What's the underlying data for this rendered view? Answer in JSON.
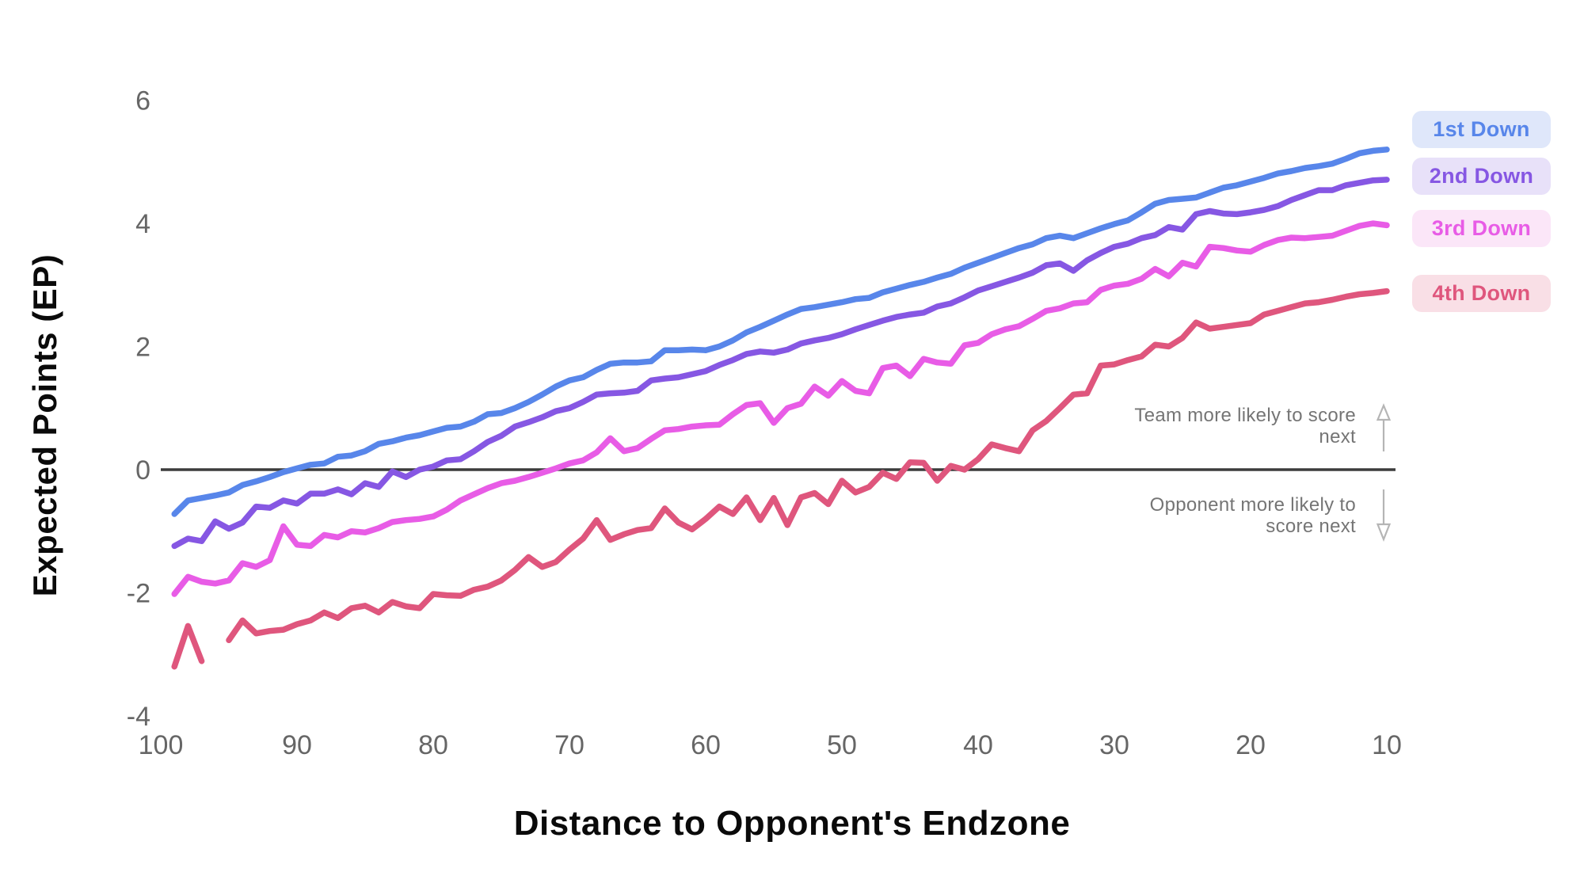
{
  "chart_data": {
    "type": "line",
    "title": "",
    "xlabel": "Distance to Opponent's Endzone",
    "ylabel": "Expected Points (EP)",
    "x_axis": {
      "ticks": [
        100,
        90,
        80,
        70,
        60,
        50,
        40,
        30,
        20,
        10
      ],
      "reversed": true,
      "range": [
        100,
        10
      ]
    },
    "y_axis": {
      "ticks": [
        6,
        4,
        2,
        0,
        -2,
        -4
      ],
      "range": [
        -4,
        6
      ],
      "grid": false
    },
    "zero_line": {
      "value": 0,
      "color": "#3c3c3c"
    },
    "legend_position": "right",
    "x": [
      99,
      98,
      97,
      96,
      95,
      94,
      93,
      92,
      91,
      90,
      89,
      88,
      87,
      86,
      85,
      84,
      83,
      82,
      81,
      80,
      79,
      78,
      77,
      76,
      75,
      74,
      73,
      72,
      71,
      70,
      69,
      68,
      67,
      66,
      65,
      64,
      63,
      62,
      61,
      60,
      59,
      58,
      57,
      56,
      55,
      54,
      53,
      52,
      51,
      50,
      49,
      48,
      47,
      46,
      45,
      44,
      43,
      42,
      41,
      40,
      39,
      38,
      37,
      36,
      35,
      34,
      33,
      32,
      31,
      30,
      29,
      28,
      27,
      26,
      25,
      24,
      23,
      22,
      21,
      20,
      19,
      18,
      17,
      16,
      15,
      14,
      13,
      12,
      11,
      10
    ],
    "series": [
      {
        "name": "1st Down",
        "color": "#5886ea",
        "badge_bg": "#dfe7fa",
        "values": [
          -0.72,
          -0.5,
          -0.46,
          -0.42,
          -0.37,
          -0.25,
          -0.19,
          -0.12,
          -0.04,
          0.02,
          0.08,
          0.1,
          0.21,
          0.23,
          0.3,
          0.42,
          0.46,
          0.52,
          0.56,
          0.62,
          0.68,
          0.7,
          0.78,
          0.9,
          0.92,
          1.0,
          1.1,
          1.22,
          1.35,
          1.45,
          1.5,
          1.62,
          1.72,
          1.74,
          1.74,
          1.76,
          1.94,
          1.94,
          1.95,
          1.94,
          2.0,
          2.1,
          2.23,
          2.32,
          2.42,
          2.52,
          2.61,
          2.64,
          2.68,
          2.72,
          2.77,
          2.79,
          2.88,
          2.94,
          3.0,
          3.05,
          3.12,
          3.18,
          3.28,
          3.36,
          3.44,
          3.52,
          3.6,
          3.66,
          3.76,
          3.8,
          3.76,
          3.84,
          3.92,
          3.99,
          4.05,
          4.18,
          4.32,
          4.38,
          4.4,
          4.42,
          4.5,
          4.58,
          4.62,
          4.68,
          4.74,
          4.81,
          4.85,
          4.9,
          4.93,
          4.97,
          5.05,
          5.14,
          5.18,
          5.2
        ]
      },
      {
        "name": "2nd Down",
        "color": "#8657e3",
        "badge_bg": "#e8e1f9",
        "values": [
          -1.24,
          -1.12,
          -1.16,
          -0.84,
          -0.96,
          -0.86,
          -0.6,
          -0.62,
          -0.5,
          -0.55,
          -0.39,
          -0.39,
          -0.32,
          -0.4,
          -0.22,
          -0.28,
          -0.03,
          -0.12,
          0.0,
          0.05,
          0.15,
          0.17,
          0.3,
          0.45,
          0.55,
          0.7,
          0.77,
          0.85,
          0.95,
          1.0,
          1.1,
          1.22,
          1.24,
          1.25,
          1.28,
          1.45,
          1.48,
          1.5,
          1.55,
          1.6,
          1.7,
          1.78,
          1.88,
          1.92,
          1.9,
          1.95,
          2.05,
          2.1,
          2.14,
          2.2,
          2.28,
          2.35,
          2.42,
          2.48,
          2.52,
          2.55,
          2.65,
          2.7,
          2.8,
          2.91,
          2.98,
          3.05,
          3.12,
          3.2,
          3.32,
          3.35,
          3.23,
          3.4,
          3.52,
          3.62,
          3.67,
          3.76,
          3.81,
          3.94,
          3.9,
          4.15,
          4.2,
          4.16,
          4.15,
          4.18,
          4.22,
          4.28,
          4.38,
          4.46,
          4.54,
          4.54,
          4.62,
          4.66,
          4.7,
          4.71
        ]
      },
      {
        "name": "3rd Down",
        "color": "#e85ce6",
        "badge_bg": "#fbe6f8",
        "values": [
          -2.02,
          -1.74,
          -1.82,
          -1.85,
          -1.8,
          -1.52,
          -1.58,
          -1.47,
          -0.92,
          -1.22,
          -1.24,
          -1.06,
          -1.1,
          -1.0,
          -1.02,
          -0.95,
          -0.85,
          -0.82,
          -0.8,
          -0.76,
          -0.65,
          -0.5,
          -0.4,
          -0.3,
          -0.22,
          -0.18,
          -0.12,
          -0.05,
          0.02,
          0.1,
          0.15,
          0.28,
          0.51,
          0.3,
          0.35,
          0.5,
          0.64,
          0.66,
          0.7,
          0.72,
          0.73,
          0.9,
          1.05,
          1.08,
          0.76,
          1.0,
          1.07,
          1.35,
          1.2,
          1.44,
          1.28,
          1.24,
          1.65,
          1.69,
          1.52,
          1.8,
          1.74,
          1.72,
          2.02,
          2.06,
          2.2,
          2.28,
          2.33,
          2.45,
          2.58,
          2.62,
          2.7,
          2.72,
          2.92,
          2.99,
          3.02,
          3.1,
          3.26,
          3.14,
          3.36,
          3.3,
          3.62,
          3.6,
          3.56,
          3.54,
          3.65,
          3.73,
          3.77,
          3.76,
          3.78,
          3.8,
          3.88,
          3.96,
          4.0,
          3.97
        ]
      },
      {
        "name": "4th Down",
        "color": "#df567d",
        "badge_bg": "#f9dfe6",
        "values": [
          -3.2,
          -2.54,
          -3.11,
          null,
          -2.77,
          -2.45,
          -2.66,
          -2.62,
          -2.6,
          -2.51,
          -2.45,
          -2.32,
          -2.41,
          -2.25,
          -2.21,
          -2.32,
          -2.15,
          -2.22,
          -2.25,
          -2.02,
          -2.04,
          -2.05,
          -1.95,
          -1.9,
          -1.8,
          -1.63,
          -1.42,
          -1.58,
          -1.5,
          -1.3,
          -1.12,
          -0.82,
          -1.14,
          -1.05,
          -0.98,
          -0.95,
          -0.63,
          -0.86,
          -0.97,
          -0.8,
          -0.6,
          -0.72,
          -0.45,
          -0.82,
          -0.46,
          -0.9,
          -0.45,
          -0.38,
          -0.56,
          -0.18,
          -0.37,
          -0.28,
          -0.05,
          -0.15,
          0.12,
          0.11,
          -0.18,
          0.06,
          0.0,
          0.17,
          0.41,
          0.35,
          0.3,
          0.64,
          0.79,
          1.0,
          1.22,
          1.24,
          1.69,
          1.71,
          1.78,
          1.84,
          2.03,
          2.0,
          2.14,
          2.39,
          2.29,
          2.32,
          2.35,
          2.38,
          2.52,
          2.58,
          2.64,
          2.7,
          2.72,
          2.76,
          2.81,
          2.85,
          2.87,
          2.9
        ]
      }
    ],
    "annotations": [
      {
        "id": "above-zero",
        "line1": "Team more likely to score",
        "line2": "next",
        "arrow": "up"
      },
      {
        "id": "below-zero",
        "line1": "Opponent more likely to",
        "line2": "score next",
        "arrow": "down"
      }
    ]
  },
  "colors": {
    "background": "#ffffff",
    "tick_label": "#666666",
    "annotation_text": "#757575",
    "arrow": "#b5b5b5",
    "axis_title": "#0a0a0a",
    "zero_line": "#3c3c3c"
  }
}
